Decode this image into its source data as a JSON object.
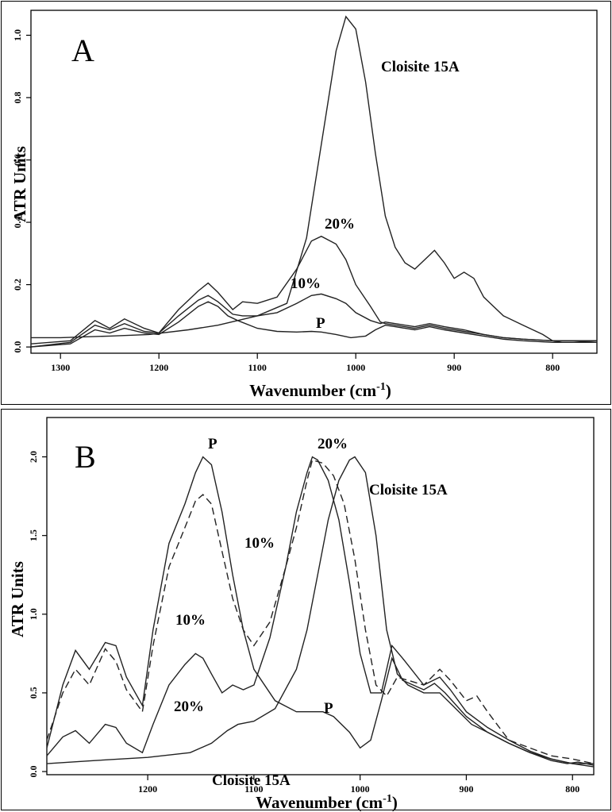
{
  "chart_data": [
    {
      "type": "line",
      "panel_label": "A",
      "xlabel": "Wavenumber (cm",
      "xlabel_sup": "-1",
      "xlabel_close": ")",
      "ylabel": "ATR Units",
      "xlim": [
        1330,
        755
      ],
      "ylim": [
        -0.02,
        1.08
      ],
      "xticks": [
        1300,
        1200,
        1100,
        1000,
        900,
        800
      ],
      "yticks": [
        0.0,
        0.2,
        0.4,
        0.6,
        0.8,
        1.0
      ],
      "ytick_labels": [
        "0.0",
        "0.2",
        "0.4",
        "0.6",
        "0.8",
        "1.0"
      ],
      "grid": false,
      "annotations": [
        {
          "text": "Cloisite 15A",
          "x": 950,
          "y": 0.99
        },
        {
          "text": "20%",
          "x": 1040,
          "y": 0.4
        },
        {
          "text": "10%",
          "x": 1060,
          "y": 0.24
        },
        {
          "text": "P",
          "x": 1040,
          "y": 0.1
        }
      ],
      "series": [
        {
          "name": "Cloisite 15A",
          "dashed": false,
          "x": [
            1330,
            1300,
            1250,
            1210,
            1170,
            1140,
            1120,
            1100,
            1070,
            1050,
            1040,
            1030,
            1020,
            1010,
            1000,
            990,
            980,
            970,
            960,
            950,
            940,
            930,
            920,
            910,
            900,
            890,
            880,
            870,
            850,
            830,
            810,
            800,
            790,
            780,
            755
          ],
          "y": [
            0.03,
            0.03,
            0.035,
            0.04,
            0.055,
            0.07,
            0.085,
            0.1,
            0.14,
            0.35,
            0.55,
            0.75,
            0.95,
            1.06,
            1.02,
            0.85,
            0.62,
            0.42,
            0.32,
            0.27,
            0.25,
            0.28,
            0.31,
            0.27,
            0.22,
            0.24,
            0.22,
            0.16,
            0.1,
            0.07,
            0.04,
            0.02,
            0.015,
            0.015,
            0.02
          ]
        },
        {
          "name": "20%",
          "dashed": false,
          "x": [
            1330,
            1290,
            1265,
            1250,
            1235,
            1215,
            1200,
            1180,
            1160,
            1150,
            1140,
            1125,
            1115,
            1100,
            1080,
            1060,
            1045,
            1035,
            1020,
            1010,
            1000,
            985,
            975,
            970,
            960,
            940,
            925,
            910,
            890,
            870,
            850,
            830,
            800,
            755
          ],
          "y": [
            0.01,
            0.02,
            0.085,
            0.06,
            0.09,
            0.06,
            0.045,
            0.12,
            0.18,
            0.205,
            0.175,
            0.12,
            0.145,
            0.14,
            0.16,
            0.25,
            0.34,
            0.355,
            0.33,
            0.28,
            0.2,
            0.13,
            0.08,
            0.075,
            0.07,
            0.06,
            0.07,
            0.06,
            0.05,
            0.04,
            0.03,
            0.025,
            0.02,
            0.02
          ]
        },
        {
          "name": "10%",
          "dashed": false,
          "x": [
            1330,
            1290,
            1265,
            1250,
            1235,
            1215,
            1200,
            1180,
            1160,
            1150,
            1140,
            1125,
            1115,
            1100,
            1080,
            1060,
            1045,
            1035,
            1020,
            1010,
            1000,
            985,
            975,
            970,
            960,
            940,
            925,
            910,
            890,
            870,
            850,
            830,
            800,
            755
          ],
          "y": [
            0.0,
            0.015,
            0.07,
            0.055,
            0.075,
            0.05,
            0.045,
            0.1,
            0.15,
            0.165,
            0.145,
            0.105,
            0.1,
            0.1,
            0.11,
            0.14,
            0.165,
            0.17,
            0.155,
            0.14,
            0.11,
            0.085,
            0.075,
            0.08,
            0.075,
            0.065,
            0.075,
            0.065,
            0.055,
            0.04,
            0.03,
            0.025,
            0.02,
            0.02
          ]
        },
        {
          "name": "P",
          "dashed": false,
          "x": [
            1330,
            1290,
            1265,
            1250,
            1235,
            1215,
            1200,
            1180,
            1160,
            1150,
            1140,
            1130,
            1120,
            1100,
            1080,
            1060,
            1045,
            1035,
            1020,
            1005,
            990,
            980,
            970,
            960,
            940,
            925,
            910,
            890,
            870,
            850,
            830,
            800,
            755
          ],
          "y": [
            0.0,
            0.01,
            0.055,
            0.045,
            0.06,
            0.045,
            0.04,
            0.08,
            0.13,
            0.145,
            0.13,
            0.1,
            0.085,
            0.06,
            0.05,
            0.048,
            0.05,
            0.048,
            0.04,
            0.03,
            0.035,
            0.055,
            0.07,
            0.065,
            0.055,
            0.065,
            0.055,
            0.045,
            0.035,
            0.025,
            0.02,
            0.015,
            0.015
          ]
        }
      ]
    },
    {
      "type": "line",
      "panel_label": "B",
      "xlabel": "Wavenumber (cm",
      "xlabel_sup": "-1",
      "xlabel_close": ")",
      "ylabel": "ATR Units",
      "xlim": [
        1295,
        780
      ],
      "ylim": [
        -0.02,
        2.25
      ],
      "xticks": [
        1200,
        1100,
        1000,
        900,
        800
      ],
      "yticks": [
        0.0,
        0.5,
        1.0,
        1.5,
        2.0
      ],
      "ytick_labels": [
        "0.0",
        "0.5",
        "1.0",
        "1.5",
        "2.0"
      ],
      "grid": false,
      "annotations": [
        {
          "text": "P",
          "x": 1150,
          "y": 2.03
        },
        {
          "text": "20%",
          "x": 1030,
          "y": 2.07
        },
        {
          "text": "Cloisite 15A",
          "x": 965,
          "y": 1.85
        },
        {
          "text": "10%",
          "x": 1070,
          "y": 1.48
        },
        {
          "text": "10%",
          "x": 1147,
          "y": 1.12
        },
        {
          "text": "20%",
          "x": 1175,
          "y": 0.37
        },
        {
          "text": "P",
          "x": 1030,
          "y": 0.37
        },
        {
          "text": "Cloisite 15A",
          "x": 1080,
          "y": -0.01
        }
      ],
      "series": [
        {
          "name": "P",
          "dashed": false,
          "x": [
            1295,
            1280,
            1268,
            1255,
            1240,
            1230,
            1220,
            1205,
            1195,
            1180,
            1165,
            1155,
            1148,
            1140,
            1130,
            1120,
            1110,
            1100,
            1080,
            1060,
            1045,
            1035,
            1025,
            1010,
            1000,
            990,
            980,
            970,
            960,
            940,
            930,
            920,
            900,
            880,
            860,
            840,
            820,
            800,
            780
          ],
          "y": [
            0.15,
            0.55,
            0.77,
            0.65,
            0.82,
            0.8,
            0.6,
            0.42,
            0.9,
            1.45,
            1.7,
            1.9,
            2.0,
            1.95,
            1.65,
            1.25,
            0.9,
            0.65,
            0.45,
            0.38,
            0.38,
            0.38,
            0.35,
            0.25,
            0.15,
            0.2,
            0.45,
            0.72,
            0.58,
            0.52,
            0.56,
            0.5,
            0.35,
            0.25,
            0.18,
            0.12,
            0.08,
            0.05,
            0.03
          ]
        },
        {
          "name": "10%",
          "dashed": true,
          "x": [
            1295,
            1280,
            1268,
            1255,
            1240,
            1230,
            1220,
            1205,
            1195,
            1180,
            1165,
            1155,
            1148,
            1140,
            1130,
            1120,
            1110,
            1100,
            1085,
            1070,
            1060,
            1050,
            1045,
            1035,
            1025,
            1015,
            1005,
            995,
            985,
            975,
            965,
            955,
            940,
            925,
            915,
            900,
            890,
            880,
            860,
            840,
            820,
            800,
            780
          ],
          "y": [
            0.2,
            0.5,
            0.65,
            0.55,
            0.78,
            0.7,
            0.52,
            0.38,
            0.8,
            1.3,
            1.55,
            1.72,
            1.76,
            1.7,
            1.4,
            1.1,
            0.9,
            0.8,
            0.95,
            1.3,
            1.55,
            1.85,
            1.98,
            1.96,
            1.88,
            1.7,
            1.35,
            0.9,
            0.55,
            0.48,
            0.6,
            0.58,
            0.55,
            0.65,
            0.58,
            0.45,
            0.48,
            0.38,
            0.2,
            0.15,
            0.1,
            0.08,
            0.05
          ]
        },
        {
          "name": "20%",
          "dashed": false,
          "x": [
            1295,
            1280,
            1268,
            1255,
            1240,
            1230,
            1220,
            1205,
            1195,
            1180,
            1165,
            1155,
            1148,
            1140,
            1130,
            1120,
            1110,
            1100,
            1085,
            1070,
            1060,
            1050,
            1045,
            1040,
            1030,
            1020,
            1010,
            1000,
            990,
            980,
            970,
            960,
            940,
            925,
            915,
            900,
            880,
            860,
            840,
            820,
            800,
            780
          ],
          "y": [
            0.1,
            0.22,
            0.26,
            0.18,
            0.3,
            0.28,
            0.18,
            0.12,
            0.3,
            0.55,
            0.68,
            0.75,
            0.72,
            0.62,
            0.5,
            0.55,
            0.52,
            0.55,
            0.85,
            1.3,
            1.65,
            1.9,
            2.0,
            1.98,
            1.85,
            1.6,
            1.2,
            0.75,
            0.5,
            0.5,
            0.8,
            0.72,
            0.55,
            0.6,
            0.52,
            0.38,
            0.28,
            0.2,
            0.13,
            0.08,
            0.05,
            0.05
          ]
        },
        {
          "name": "Cloisite 15A",
          "dashed": false,
          "x": [
            1295,
            1250,
            1200,
            1160,
            1140,
            1125,
            1115,
            1100,
            1080,
            1060,
            1050,
            1040,
            1030,
            1020,
            1010,
            1005,
            995,
            985,
            975,
            965,
            955,
            940,
            925,
            910,
            895,
            880,
            860,
            840,
            820,
            805,
            795,
            780
          ],
          "y": [
            0.05,
            0.07,
            0.09,
            0.12,
            0.18,
            0.26,
            0.3,
            0.32,
            0.4,
            0.65,
            0.9,
            1.25,
            1.6,
            1.85,
            1.98,
            2.0,
            1.9,
            1.5,
            0.9,
            0.62,
            0.55,
            0.5,
            0.5,
            0.4,
            0.3,
            0.25,
            0.18,
            0.12,
            0.07,
            0.05,
            0.06,
            0.04
          ]
        }
      ]
    }
  ]
}
